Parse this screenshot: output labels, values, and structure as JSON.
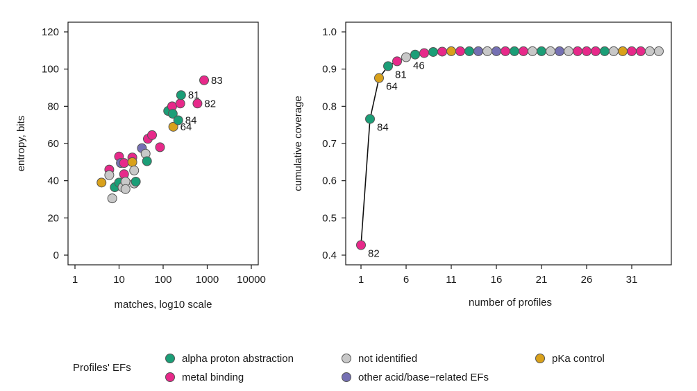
{
  "colors": {
    "alpha proton abstraction": "#1b9e77",
    "metal binding": "#e7298a",
    "not identified": "#c8c8c8",
    "other acid/base-related EFs": "#7570b3",
    "pKa control": "#d9a11b"
  },
  "legend": {
    "title": "Profiles' EFs",
    "entries": [
      {
        "label": "alpha proton abstraction",
        "category": "alpha proton abstraction"
      },
      {
        "label": "metal binding",
        "category": "metal binding"
      },
      {
        "label": "not identified",
        "category": "not identified"
      },
      {
        "label": "other acid/base−related EFs",
        "category": "other acid/base-related EFs"
      },
      {
        "label": "pKa control",
        "category": "pKa control"
      }
    ]
  },
  "chart_data": [
    {
      "type": "scatter",
      "xlabel": "matches, log10 scale",
      "ylabel": "entropy, bits",
      "xscale": "log10",
      "xlim": [
        1,
        10000
      ],
      "ylim": [
        0,
        120
      ],
      "xticks": [
        1,
        10,
        100,
        1000,
        10000
      ],
      "xtick_labels": [
        "1",
        "10",
        "100",
        "1000",
        "10000"
      ],
      "yticks": [
        0,
        20,
        40,
        60,
        80,
        100,
        120
      ],
      "ytick_labels": [
        "0",
        "20",
        "40",
        "60",
        "80",
        "100",
        "120"
      ],
      "points": [
        {
          "x": 4,
          "y": 39,
          "category": "pKa control"
        },
        {
          "x": 6,
          "y": 46,
          "category": "metal binding"
        },
        {
          "x": 6,
          "y": 43,
          "category": "not identified"
        },
        {
          "x": 7,
          "y": 30.5,
          "category": "not identified"
        },
        {
          "x": 8,
          "y": 36.5,
          "category": "alpha proton abstraction"
        },
        {
          "x": 10,
          "y": 53,
          "category": "metal binding"
        },
        {
          "x": 10,
          "y": 39,
          "category": "alpha proton abstraction"
        },
        {
          "x": 11,
          "y": 49.5,
          "category": "other acid/base-related EFs"
        },
        {
          "x": 12,
          "y": 36.5,
          "category": "not identified"
        },
        {
          "x": 13,
          "y": 43.5,
          "category": "metal binding"
        },
        {
          "x": 13,
          "y": 49.5,
          "category": "metal binding"
        },
        {
          "x": 14,
          "y": 39.5,
          "category": "not identified"
        },
        {
          "x": 14,
          "y": 35.5,
          "category": "not identified"
        },
        {
          "x": 20,
          "y": 52.5,
          "category": "metal binding"
        },
        {
          "x": 20,
          "y": 50,
          "category": "pKa control"
        },
        {
          "x": 22,
          "y": 45.5,
          "category": "not identified"
        },
        {
          "x": 22,
          "y": 38.5,
          "category": "not identified"
        },
        {
          "x": 24,
          "y": 39.5,
          "category": "alpha proton abstraction"
        },
        {
          "x": 33,
          "y": 57.5,
          "category": "other acid/base-related EFs"
        },
        {
          "x": 40,
          "y": 54.5,
          "category": "not identified"
        },
        {
          "x": 43,
          "y": 50.5,
          "category": "alpha proton abstraction"
        },
        {
          "x": 45,
          "y": 62.5,
          "category": "metal binding"
        },
        {
          "x": 56,
          "y": 64.5,
          "category": "metal binding"
        },
        {
          "x": 85,
          "y": 58,
          "category": "metal binding"
        },
        {
          "x": 130,
          "y": 77.5,
          "category": "alpha proton abstraction"
        },
        {
          "x": 160,
          "y": 80,
          "category": "metal binding"
        },
        {
          "x": 165,
          "y": 76,
          "category": "alpha proton abstraction"
        },
        {
          "x": 170,
          "y": 69,
          "category": "pKa control",
          "label": "64"
        },
        {
          "x": 220,
          "y": 72.5,
          "category": "alpha proton abstraction",
          "label": "84"
        },
        {
          "x": 245,
          "y": 81.5,
          "category": "metal binding"
        },
        {
          "x": 255,
          "y": 86,
          "category": "alpha proton abstraction",
          "label": "81"
        },
        {
          "x": 600,
          "y": 81.5,
          "category": "metal binding",
          "label": "82"
        },
        {
          "x": 850,
          "y": 94,
          "category": "metal binding",
          "label": "83"
        }
      ]
    },
    {
      "type": "line",
      "xlabel": "number of profiles",
      "ylabel": "cumulative coverage",
      "xlim": [
        -1,
        36
      ],
      "ylim": [
        0.38,
        1.02
      ],
      "xticks": [
        1,
        6,
        11,
        16,
        21,
        26,
        31
      ],
      "xtick_labels": [
        "1",
        "6",
        "11",
        "16",
        "21",
        "26",
        "31"
      ],
      "yticks": [
        0.4,
        0.5,
        0.6,
        0.7,
        0.8,
        0.9,
        1.0
      ],
      "ytick_labels": [
        "0.4",
        "0.5",
        "0.6",
        "0.7",
        "0.8",
        "0.9",
        "1.0"
      ],
      "points": [
        {
          "x": 1,
          "y": 0.427,
          "category": "metal binding",
          "label": "82"
        },
        {
          "x": 2,
          "y": 0.766,
          "category": "alpha proton abstraction",
          "label": "84"
        },
        {
          "x": 3,
          "y": 0.876,
          "category": "pKa control",
          "label": "64"
        },
        {
          "x": 4,
          "y": 0.908,
          "category": "alpha proton abstraction",
          "label": "81"
        },
        {
          "x": 5,
          "y": 0.921,
          "category": "metal binding"
        },
        {
          "x": 6,
          "y": 0.932,
          "category": "not identified",
          "label": "46"
        },
        {
          "x": 7,
          "y": 0.939,
          "category": "alpha proton abstraction"
        },
        {
          "x": 8,
          "y": 0.943,
          "category": "metal binding"
        },
        {
          "x": 9,
          "y": 0.946,
          "category": "alpha proton abstraction"
        },
        {
          "x": 10,
          "y": 0.947,
          "category": "metal binding"
        },
        {
          "x": 11,
          "y": 0.948,
          "category": "pKa control"
        },
        {
          "x": 12,
          "y": 0.948,
          "category": "metal binding"
        },
        {
          "x": 13,
          "y": 0.948,
          "category": "alpha proton abstraction"
        },
        {
          "x": 14,
          "y": 0.948,
          "category": "other acid/base-related EFs"
        },
        {
          "x": 15,
          "y": 0.948,
          "category": "not identified"
        },
        {
          "x": 16,
          "y": 0.948,
          "category": "other acid/base-related EFs"
        },
        {
          "x": 17,
          "y": 0.948,
          "category": "metal binding"
        },
        {
          "x": 18,
          "y": 0.948,
          "category": "alpha proton abstraction"
        },
        {
          "x": 19,
          "y": 0.948,
          "category": "metal binding"
        },
        {
          "x": 20,
          "y": 0.948,
          "category": "not identified"
        },
        {
          "x": 21,
          "y": 0.948,
          "category": "alpha proton abstraction"
        },
        {
          "x": 22,
          "y": 0.948,
          "category": "not identified"
        },
        {
          "x": 23,
          "y": 0.948,
          "category": "other acid/base-related EFs"
        },
        {
          "x": 24,
          "y": 0.948,
          "category": "not identified"
        },
        {
          "x": 25,
          "y": 0.948,
          "category": "metal binding"
        },
        {
          "x": 26,
          "y": 0.948,
          "category": "metal binding"
        },
        {
          "x": 27,
          "y": 0.948,
          "category": "metal binding"
        },
        {
          "x": 28,
          "y": 0.948,
          "category": "alpha proton abstraction"
        },
        {
          "x": 29,
          "y": 0.948,
          "category": "not identified"
        },
        {
          "x": 30,
          "y": 0.948,
          "category": "pKa control"
        },
        {
          "x": 31,
          "y": 0.948,
          "category": "metal binding"
        },
        {
          "x": 32,
          "y": 0.948,
          "category": "metal binding"
        },
        {
          "x": 33,
          "y": 0.948,
          "category": "not identified"
        },
        {
          "x": 34,
          "y": 0.948,
          "category": "not identified"
        }
      ]
    }
  ]
}
